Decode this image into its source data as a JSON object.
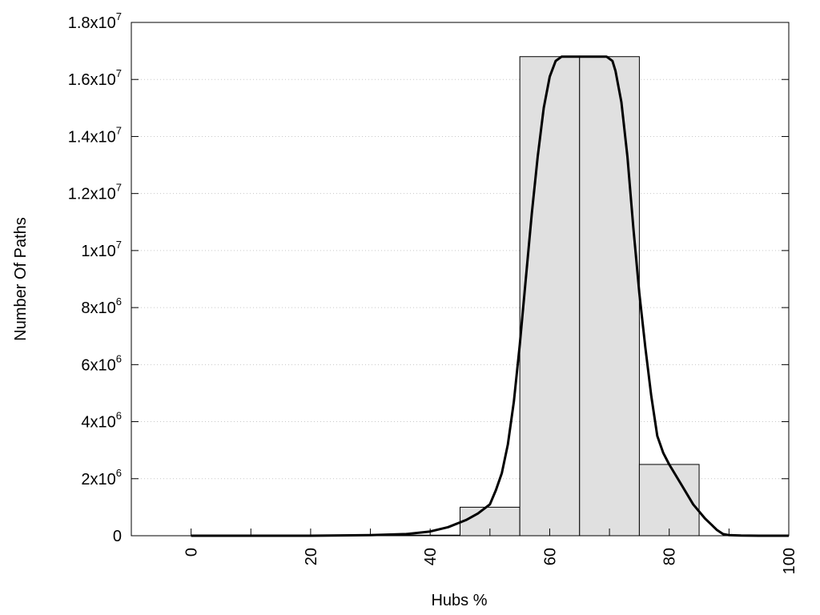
{
  "chart_data": {
    "type": "bar",
    "title": "",
    "xlabel": "Hubs %",
    "ylabel": "Number Of Paths",
    "xlim": [
      -10,
      100
    ],
    "ylim": [
      0,
      18000000
    ],
    "grid": "horizontal-dotted",
    "x_ticks": [
      {
        "value": 0,
        "label": "0"
      },
      {
        "value": 20,
        "label": "20"
      },
      {
        "value": 40,
        "label": "40"
      },
      {
        "value": 60,
        "label": "60"
      },
      {
        "value": 80,
        "label": "80"
      },
      {
        "value": 100,
        "label": "100"
      }
    ],
    "x_minor_ticks": [
      10,
      30,
      50,
      70,
      90
    ],
    "y_ticks": [
      {
        "value": 0,
        "mant": "0",
        "exp": ""
      },
      {
        "value": 2000000,
        "mant": "2x10",
        "exp": "6"
      },
      {
        "value": 4000000,
        "mant": "4x10",
        "exp": "6"
      },
      {
        "value": 6000000,
        "mant": "6x10",
        "exp": "6"
      },
      {
        "value": 8000000,
        "mant": "8x10",
        "exp": "6"
      },
      {
        "value": 10000000,
        "mant": "1x10",
        "exp": "7"
      },
      {
        "value": 12000000,
        "mant": "1.2x10",
        "exp": "7"
      },
      {
        "value": 14000000,
        "mant": "1.4x10",
        "exp": "7"
      },
      {
        "value": 16000000,
        "mant": "1.6x10",
        "exp": "7"
      },
      {
        "value": 18000000,
        "mant": "1.8x10",
        "exp": "7"
      }
    ],
    "bar_width": 10,
    "bars": [
      {
        "x": 0,
        "value": 0
      },
      {
        "x": 10,
        "value": 0
      },
      {
        "x": 20,
        "value": 0
      },
      {
        "x": 30,
        "value": 0
      },
      {
        "x": 40,
        "value": 20000
      },
      {
        "x": 50,
        "value": 1000000
      },
      {
        "x": 60,
        "value": 16800000
      },
      {
        "x": 70,
        "value": 16800000
      },
      {
        "x": 80,
        "value": 2500000
      },
      {
        "x": 90,
        "value": 0
      },
      {
        "x": 100,
        "value": 0
      }
    ],
    "curve": {
      "x": [
        0,
        10,
        20,
        30,
        36,
        40,
        43,
        46,
        48,
        50,
        51,
        52,
        53,
        54,
        55,
        56,
        57,
        58,
        59,
        60,
        61,
        62,
        62.5,
        64,
        66,
        68,
        69.5,
        70.5,
        71,
        72,
        73,
        74,
        75,
        76,
        77,
        78,
        79,
        80,
        82,
        84,
        86,
        88,
        89,
        90,
        92,
        95,
        100
      ],
      "y": [
        0,
        0,
        0,
        20000,
        60000,
        150000,
        300000,
        550000,
        780000,
        1100000,
        1600000,
        2200000,
        3200000,
        4700000,
        6700000,
        9000000,
        11300000,
        13300000,
        15000000,
        16100000,
        16650000,
        16800000,
        16800000,
        16800000,
        16800000,
        16800000,
        16800000,
        16650000,
        16300000,
        15200000,
        13300000,
        10800000,
        8500000,
        6600000,
        4900000,
        3500000,
        2900000,
        2500000,
        1800000,
        1100000,
        600000,
        200000,
        60000,
        20000,
        5000,
        1000,
        0
      ],
      "color": "#000000"
    },
    "bar_fill": "#e0e0e0",
    "bar_stroke": "#000000"
  }
}
